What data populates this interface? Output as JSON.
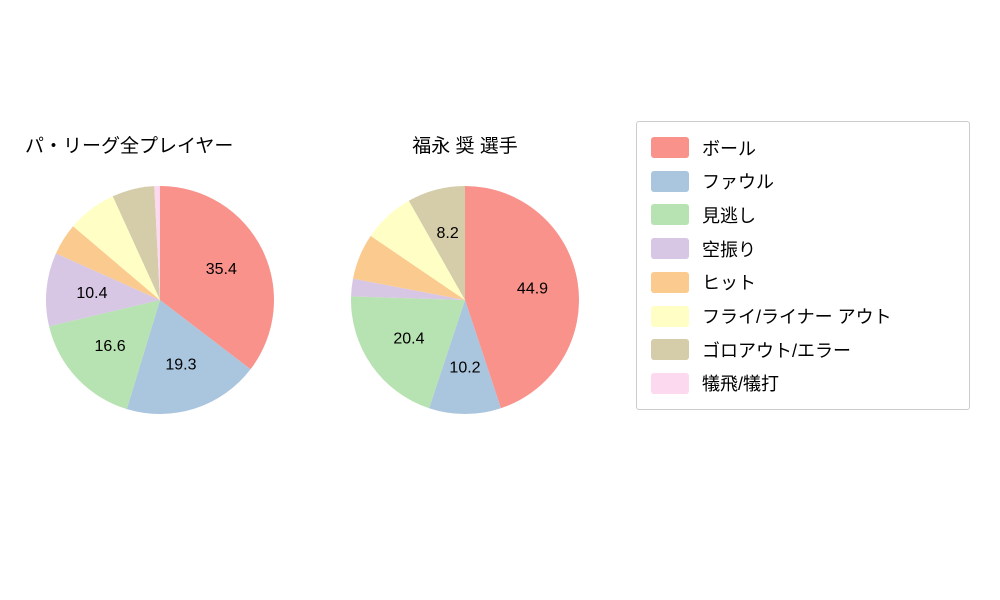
{
  "palette": [
    "#f8928b",
    "#aac5de",
    "#b7e2b1",
    "#d7c6e4",
    "#fbca8e",
    "#ffffc5",
    "#d5cda9",
    "#fcd9ee"
  ],
  "legend": {
    "categories": [
      "ボール",
      "ファウル",
      "見逃し",
      "空振り",
      "ヒット",
      "フライ/ライナー アウト",
      "ゴロアウト/エラー",
      "犠飛/犠打"
    ]
  },
  "chart_data": [
    {
      "type": "pie",
      "title": "パ・リーグ全プレイヤー",
      "start_angle_deg": 0,
      "direction": "clockwise",
      "units": "percent",
      "slices": [
        {
          "name": "ボール",
          "value": 35.4,
          "label": "35.4"
        },
        {
          "name": "ファウル",
          "value": 19.3,
          "label": "19.3"
        },
        {
          "name": "見逃し",
          "value": 16.6,
          "label": "16.6"
        },
        {
          "name": "空振り",
          "value": 10.4,
          "label": "10.4"
        },
        {
          "name": "ヒット",
          "value": 4.5,
          "label": ""
        },
        {
          "name": "フライ/ライナー アウト",
          "value": 7.0,
          "label": ""
        },
        {
          "name": "ゴロアウト/エラー",
          "value": 6.0,
          "label": ""
        },
        {
          "name": "犠飛/犠打",
          "value": 0.8,
          "label": ""
        }
      ]
    },
    {
      "type": "pie",
      "title": "福永 奨  選手",
      "start_angle_deg": 0,
      "direction": "clockwise",
      "units": "percent",
      "slices": [
        {
          "name": "ボール",
          "value": 44.9,
          "label": "44.9"
        },
        {
          "name": "ファウル",
          "value": 10.2,
          "label": "10.2"
        },
        {
          "name": "見逃し",
          "value": 20.4,
          "label": "20.4"
        },
        {
          "name": "空振り",
          "value": 2.5,
          "label": ""
        },
        {
          "name": "ヒット",
          "value": 6.5,
          "label": ""
        },
        {
          "name": "フライ/ライナー アウト",
          "value": 7.3,
          "label": ""
        },
        {
          "name": "ゴロアウト/エラー",
          "value": 8.2,
          "label": "8.2"
        },
        {
          "name": "犠飛/犠打",
          "value": 0.0,
          "label": ""
        }
      ]
    }
  ]
}
